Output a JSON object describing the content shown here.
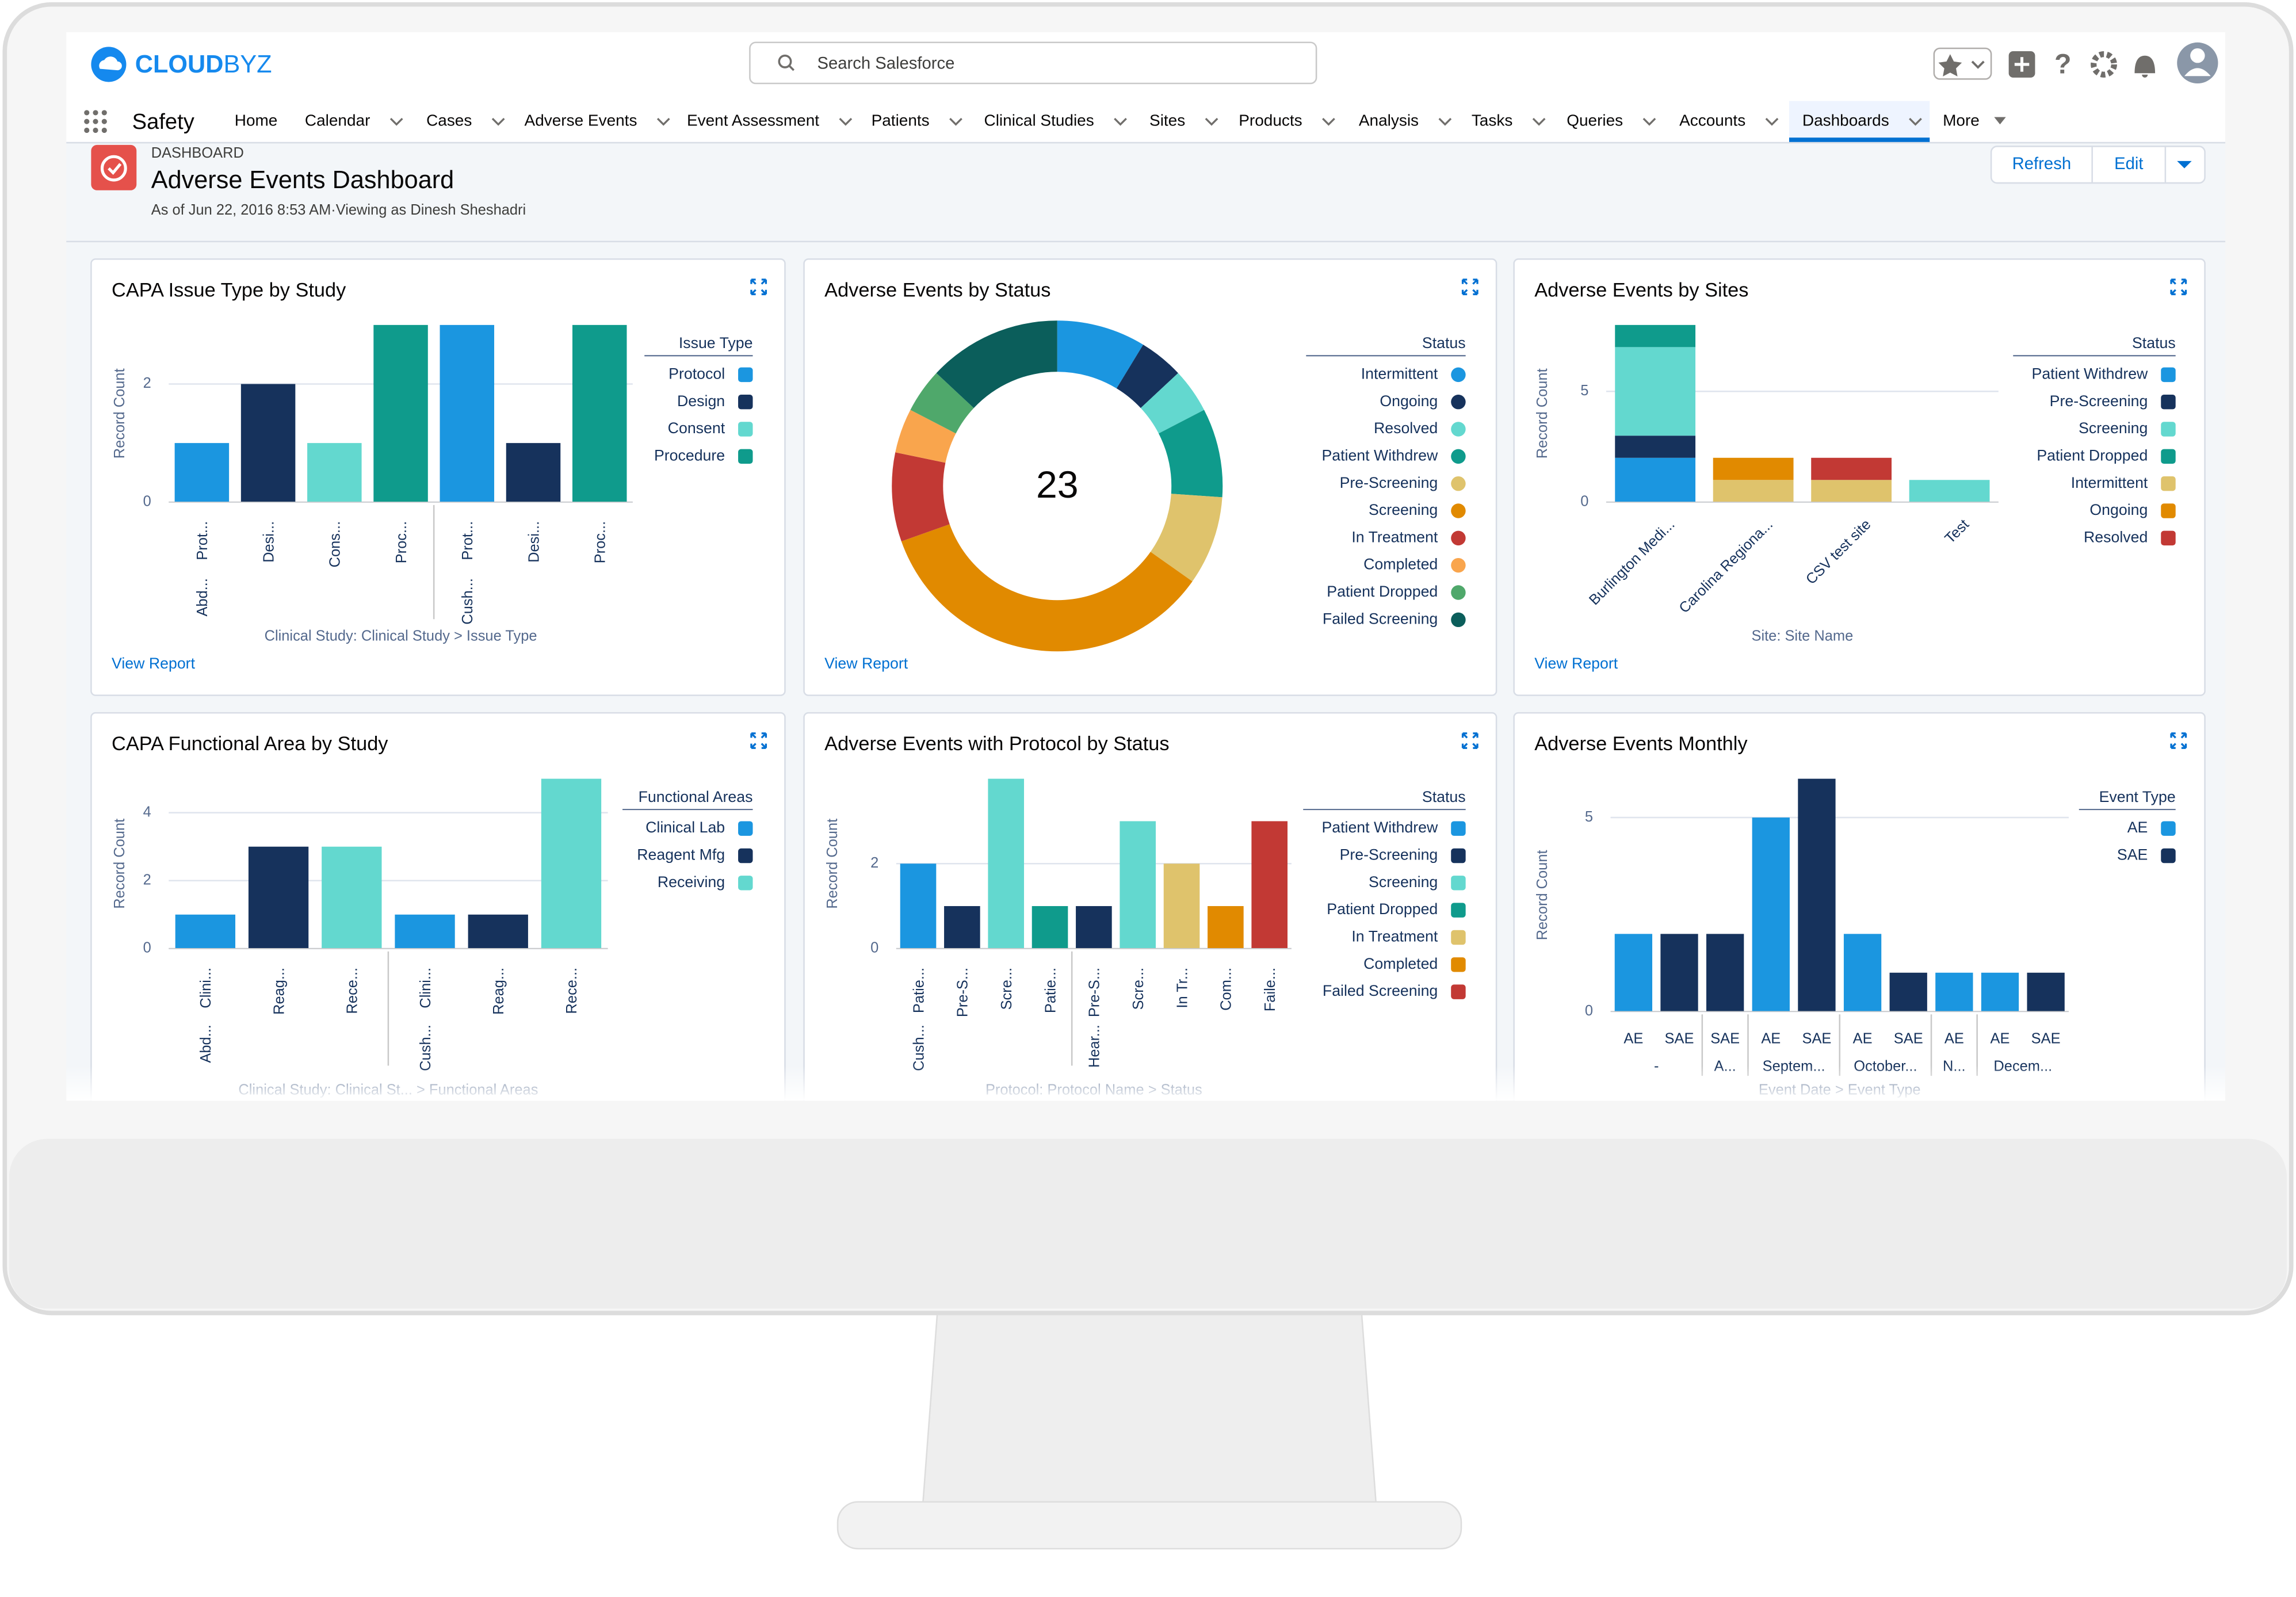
{
  "header": {
    "logo": {
      "bold": "CLOUD",
      "light": "BYZ"
    },
    "search_placeholder": "Search Salesforce"
  },
  "nav": {
    "app_name": "Safety",
    "items": [
      "Home",
      "Calendar",
      "Cases",
      "Adverse Events",
      "Event Assessment",
      "Patients",
      "Clinical Studies",
      "Sites",
      "Products",
      "Analysis",
      "Tasks",
      "Queries",
      "Accounts",
      "Dashboards",
      "More"
    ],
    "active": "Dashboards"
  },
  "dashboard": {
    "label": "DASHBOARD",
    "title": "Adverse Events Dashboard",
    "subtitle": "As of Jun 22, 2016 8:53 AM·Viewing as Dinesh Sheshadri",
    "buttons": [
      "Refresh",
      "Edit"
    ]
  },
  "chart_data": [
    {
      "type": "bar",
      "title": "CAPA Issue Type by Study",
      "y_label": "Record Count",
      "x_label": "Clinical Study: Clinical Study > Issue Type",
      "legend_title": "Issue Type",
      "link": "View Report",
      "groups": [
        {
          "label": "Abd...",
          "categories": [
            "Prot...",
            "Desi...",
            "Cons...",
            "Proc..."
          ]
        },
        {
          "label": "Cush...",
          "categories": [
            "Prot...",
            "Desi...",
            "Proc..."
          ]
        }
      ],
      "series": [
        {
          "name": "Protocol",
          "color": "#1b96e0",
          "values": [
            1,
            null,
            null,
            null,
            3,
            null,
            null
          ]
        },
        {
          "name": "Design",
          "color": "#16325c",
          "values": [
            null,
            2,
            null,
            null,
            null,
            1,
            null
          ]
        },
        {
          "name": "Consent",
          "color": "#63d8cf",
          "values": [
            null,
            null,
            1,
            null,
            null,
            null,
            null
          ]
        },
        {
          "name": "Procedure",
          "color": "#0f9b8c",
          "values": [
            null,
            null,
            null,
            3,
            null,
            null,
            3
          ]
        }
      ],
      "ylim": [
        0,
        3
      ],
      "yticks": [
        0,
        2
      ],
      "grid": true,
      "stacked": false
    },
    {
      "type": "donut",
      "title": "Adverse Events by Status",
      "legend_title": "Status",
      "link": "View Report",
      "center_label": 23,
      "categories": [
        "Intermittent",
        "Ongoing",
        "Resolved",
        "Patient Withdrew",
        "Pre-Screening",
        "Screening",
        "In Treatment",
        "Completed",
        "Patient Dropped",
        "Failed Screening"
      ],
      "values": [
        2,
        1,
        1,
        2,
        2,
        8,
        2,
        1,
        1,
        3
      ],
      "colors": [
        "#1b96e0",
        "#16325c",
        "#63d8cf",
        "#0f9b8c",
        "#dfc36c",
        "#e18a00",
        "#c23934",
        "#f9a54d",
        "#4fa86b",
        "#0b5e5b"
      ]
    },
    {
      "type": "bar",
      "title": "Adverse Events by Sites",
      "y_label": "Record Count",
      "x_label": "Site: Site Name",
      "legend_title": "Status",
      "link": "View Report",
      "categories": [
        "Burlington Medi...",
        "Carolina Regiona...",
        "CSV test site",
        "Test"
      ],
      "series": [
        {
          "name": "Patient Withdrew",
          "color": "#1b96e0",
          "values": [
            2,
            null,
            null,
            null
          ]
        },
        {
          "name": "Pre-Screening",
          "color": "#16325c",
          "values": [
            1,
            null,
            null,
            null
          ]
        },
        {
          "name": "Screening",
          "color": "#63d8cf",
          "values": [
            4,
            null,
            null,
            1
          ]
        },
        {
          "name": "Patient Dropped",
          "color": "#0f9b8c",
          "values": [
            1,
            null,
            null,
            null
          ]
        },
        {
          "name": "Intermittent",
          "color": "#dfc36c",
          "values": [
            null,
            1,
            1,
            null
          ]
        },
        {
          "name": "Ongoing",
          "color": "#e18a00",
          "values": [
            null,
            1,
            null,
            null
          ]
        },
        {
          "name": "Resolved",
          "color": "#c23934",
          "values": [
            null,
            null,
            1,
            null
          ]
        }
      ],
      "ylim": [
        0,
        8
      ],
      "yticks": [
        0,
        5
      ],
      "grid": true,
      "stacked": true
    },
    {
      "type": "bar",
      "title": "CAPA Functional Area by Study",
      "y_label": "Record Count",
      "x_label": "Clinical Study: Clinical St...  > Functional Areas",
      "legend_title": "Functional Areas",
      "groups": [
        {
          "label": "Abd...",
          "categories": [
            "Clini...",
            "Reag...",
            "Rece..."
          ]
        },
        {
          "label": "Cush...",
          "categories": [
            "Clini...",
            "Reag...",
            "Rece..."
          ]
        }
      ],
      "series": [
        {
          "name": "Clinical Lab",
          "color": "#1b96e0",
          "values": [
            1,
            null,
            null,
            1,
            null,
            null
          ]
        },
        {
          "name": "Reagent Mfg",
          "color": "#16325c",
          "values": [
            null,
            3,
            null,
            null,
            1,
            null
          ]
        },
        {
          "name": "Receiving",
          "color": "#63d8cf",
          "values": [
            null,
            null,
            3,
            null,
            null,
            5
          ]
        }
      ],
      "ylim": [
        0,
        5
      ],
      "yticks": [
        0,
        2,
        4
      ],
      "grid": true,
      "stacked": false
    },
    {
      "type": "bar",
      "title": "Adverse Events with Protocol by Status",
      "y_label": "Record Count",
      "x_label": "Protocol: Protocol Name > Status",
      "legend_title": "Status",
      "groups": [
        {
          "label": "Cush...",
          "categories": [
            "Patie...",
            "Pre-S...",
            "Scre...",
            "Patie..."
          ]
        },
        {
          "label": "Hear...",
          "categories": [
            "Pre-S...",
            "Scre...",
            "In Tr...",
            "Com...",
            "Faile..."
          ]
        }
      ],
      "series": [
        {
          "name": "Patient Withdrew",
          "color": "#1b96e0",
          "values": [
            2,
            null,
            null,
            null,
            null,
            null,
            null,
            null,
            null
          ]
        },
        {
          "name": "Pre-Screening",
          "color": "#16325c",
          "values": [
            null,
            1,
            null,
            null,
            1,
            null,
            null,
            null,
            null
          ]
        },
        {
          "name": "Screening",
          "color": "#63d8cf",
          "values": [
            null,
            null,
            4,
            null,
            null,
            3,
            null,
            null,
            null
          ]
        },
        {
          "name": "Patient Dropped",
          "color": "#0f9b8c",
          "values": [
            null,
            null,
            null,
            1,
            null,
            null,
            null,
            null,
            null
          ]
        },
        {
          "name": "In Treatment",
          "color": "#dfc36c",
          "values": [
            null,
            null,
            null,
            null,
            null,
            null,
            2,
            null,
            null
          ]
        },
        {
          "name": "Completed",
          "color": "#e18a00",
          "values": [
            null,
            null,
            null,
            null,
            null,
            null,
            null,
            1,
            null
          ]
        },
        {
          "name": "Failed Screening",
          "color": "#c23934",
          "values": [
            null,
            null,
            null,
            null,
            null,
            null,
            null,
            null,
            3
          ]
        }
      ],
      "ylim": [
        0,
        4
      ],
      "yticks": [
        0,
        2
      ],
      "grid": true,
      "stacked": false
    },
    {
      "type": "bar",
      "title": "Adverse Events Monthly",
      "y_label": "Record Count",
      "x_label": "Event Date > Event Type",
      "legend_title": "Event Type",
      "groups": [
        {
          "label": "-",
          "categories": [
            "AE",
            "SAE"
          ]
        },
        {
          "label": "A...",
          "categories": [
            "SAE"
          ]
        },
        {
          "label": "Septem...",
          "categories": [
            "AE",
            "SAE"
          ]
        },
        {
          "label": "October...",
          "categories": [
            "AE",
            "SAE"
          ]
        },
        {
          "label": "N...",
          "categories": [
            "AE"
          ]
        },
        {
          "label": "Decem...",
          "categories": [
            "AE",
            "SAE"
          ]
        }
      ],
      "series": [
        {
          "name": "AE",
          "color": "#1b96e0",
          "values": [
            2,
            null,
            null,
            5,
            null,
            2,
            null,
            1,
            1,
            null
          ]
        },
        {
          "name": "SAE",
          "color": "#16325c",
          "values": [
            null,
            2,
            2,
            null,
            6,
            null,
            1,
            null,
            null,
            1
          ]
        }
      ],
      "ylim": [
        0,
        6
      ],
      "yticks": [
        0,
        5
      ],
      "grid": true,
      "stacked": false
    }
  ]
}
